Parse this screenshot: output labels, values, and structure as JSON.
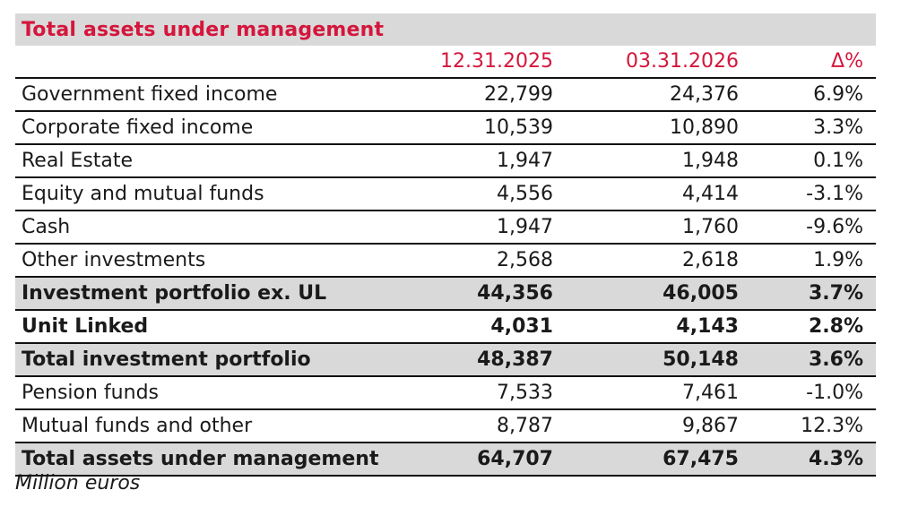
{
  "title": "Total assets under management",
  "columns": [
    "",
    "12.31.2025",
    "03.31.2026",
    "Δ%"
  ],
  "rows": [
    {
      "label": "Government fixed income",
      "v1": "22,799",
      "v2": "24,376",
      "v3": "6.9%",
      "bold": false,
      "shaded": false
    },
    {
      "label": "Corporate fixed income",
      "v1": "10,539",
      "v2": "10,890",
      "v3": "3.3%",
      "bold": false,
      "shaded": false
    },
    {
      "label": "Real Estate",
      "v1": "1,947",
      "v2": "1,948",
      "v3": "0.1%",
      "bold": false,
      "shaded": false
    },
    {
      "label": "Equity and mutual funds",
      "v1": "4,556",
      "v2": "4,414",
      "v3": "-3.1%",
      "bold": false,
      "shaded": false
    },
    {
      "label": "Cash",
      "v1": "1,947",
      "v2": "1,760",
      "v3": "-9.6%",
      "bold": false,
      "shaded": false
    },
    {
      "label": "Other investments",
      "v1": "2,568",
      "v2": "2,618",
      "v3": "1.9%",
      "bold": false,
      "shaded": false
    },
    {
      "label": "Investment portfolio ex. UL",
      "v1": "44,356",
      "v2": "46,005",
      "v3": "3.7%",
      "bold": true,
      "shaded": true
    },
    {
      "label": "Unit Linked",
      "v1": "4,031",
      "v2": "4,143",
      "v3": "2.8%",
      "bold": true,
      "shaded": false
    },
    {
      "label": "Total investment portfolio",
      "v1": "48,387",
      "v2": "50,148",
      "v3": "3.6%",
      "bold": true,
      "shaded": true
    },
    {
      "label": "Pension funds",
      "v1": "7,533",
      "v2": "7,461",
      "v3": "-1.0%",
      "bold": false,
      "shaded": false
    },
    {
      "label": "Mutual funds and other",
      "v1": "8,787",
      "v2": "9,867",
      "v3": "12.3%",
      "bold": false,
      "shaded": false
    },
    {
      "label": "Total assets under management",
      "v1": "64,707",
      "v2": "67,475",
      "v3": "4.3%",
      "bold": true,
      "shaded": true
    }
  ],
  "note": "Million euros",
  "colors": {
    "accent": "#d4163c",
    "shade": "#d9d9d9"
  }
}
